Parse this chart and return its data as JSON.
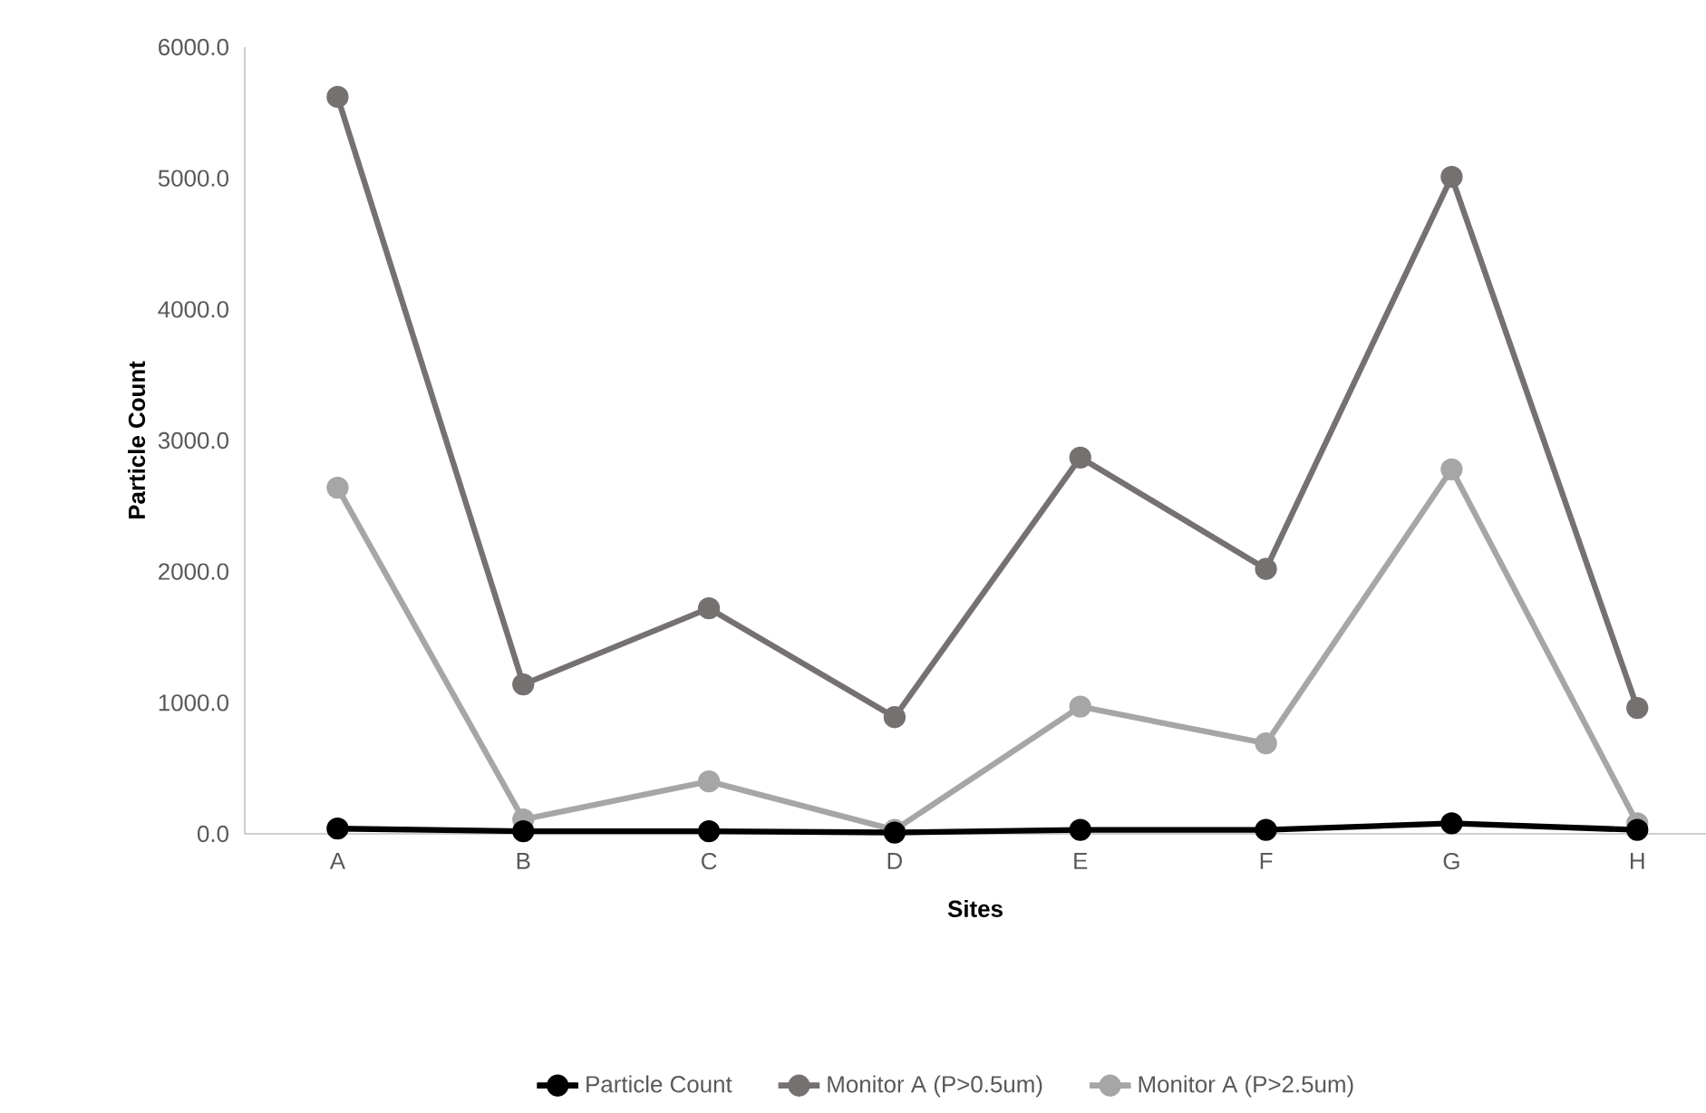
{
  "chart_data": {
    "type": "line",
    "xlabel": "Sites",
    "ylabel": "Particle Count",
    "categories": [
      "A",
      "B",
      "C",
      "D",
      "E",
      "F",
      "G",
      "H"
    ],
    "series": [
      {
        "name": "Particle Count",
        "color": "#000000",
        "values": [
          40,
          20,
          20,
          10,
          30,
          30,
          80,
          30
        ]
      },
      {
        "name": "Monitor A (P>0.5um)",
        "color": "#767171",
        "values": [
          5620,
          1140,
          1720,
          890,
          2870,
          2020,
          5010,
          960
        ]
      },
      {
        "name": "Monitor A (P>2.5um)",
        "color": "#a6a6a6",
        "values": [
          2640,
          110,
          400,
          30,
          970,
          690,
          2780,
          80
        ]
      }
    ],
    "ylim": [
      0,
      6000
    ],
    "yticks": [
      {
        "value": 0,
        "label": "0.0"
      },
      {
        "value": 1000,
        "label": "1000.0"
      },
      {
        "value": 2000,
        "label": "2000.0"
      },
      {
        "value": 3000,
        "label": "3000.0"
      },
      {
        "value": 4000,
        "label": "4000.0"
      },
      {
        "value": 5000,
        "label": "5000.0"
      },
      {
        "value": 6000,
        "label": "6000.0"
      }
    ],
    "grid": false,
    "legend": "bottom",
    "marker": "circle",
    "line_style": "solid"
  }
}
